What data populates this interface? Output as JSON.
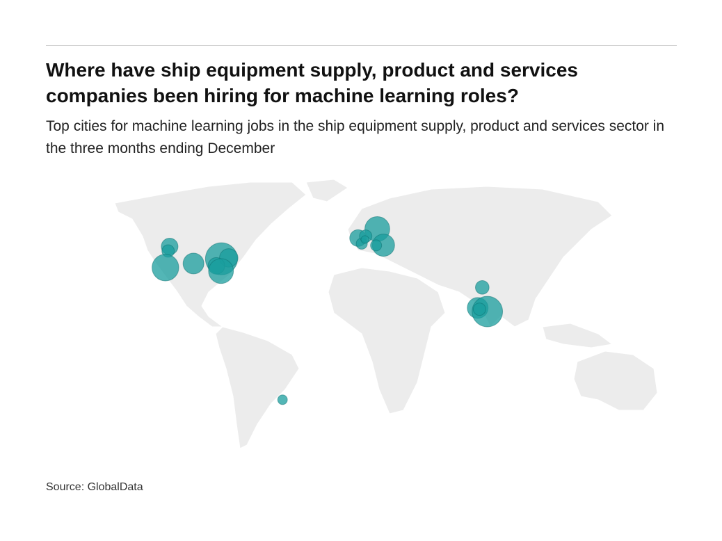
{
  "title": "Where have ship equipment supply, product and services companies been hiring for machine learning roles?",
  "subtitle": "Top cities for machine learning jobs in the ship equipment supply, product and services sector in the three months ending December",
  "source": "Source: GlobalData",
  "chart_data": {
    "type": "bubble-map",
    "color": "#1a9e9e",
    "points": {
      "lon": [
        -122.3,
        -122.7,
        -122.4,
        -105.0,
        -87.6,
        -83.0,
        -90.2,
        -86.8,
        12.6,
        -0.1,
        2.3,
        4.9,
        16.4,
        11.6,
        4.4,
        77.2,
        72.9,
        78.5,
        73.9,
        -46.6
      ],
      "lat": [
        47.6,
        45.5,
        37.8,
        39.7,
        41.9,
        42.3,
        38.6,
        36.2,
        55.7,
        51.5,
        48.9,
        52.4,
        48.2,
        48.1,
        50.8,
        28.6,
        19.1,
        17.4,
        18.5,
        -23.5
      ],
      "size": [
        9,
        5,
        23,
        14,
        33,
        11,
        9,
        20,
        20,
        9,
        4,
        5,
        16,
        4,
        2,
        6,
        14,
        30,
        5,
        3
      ]
    }
  }
}
